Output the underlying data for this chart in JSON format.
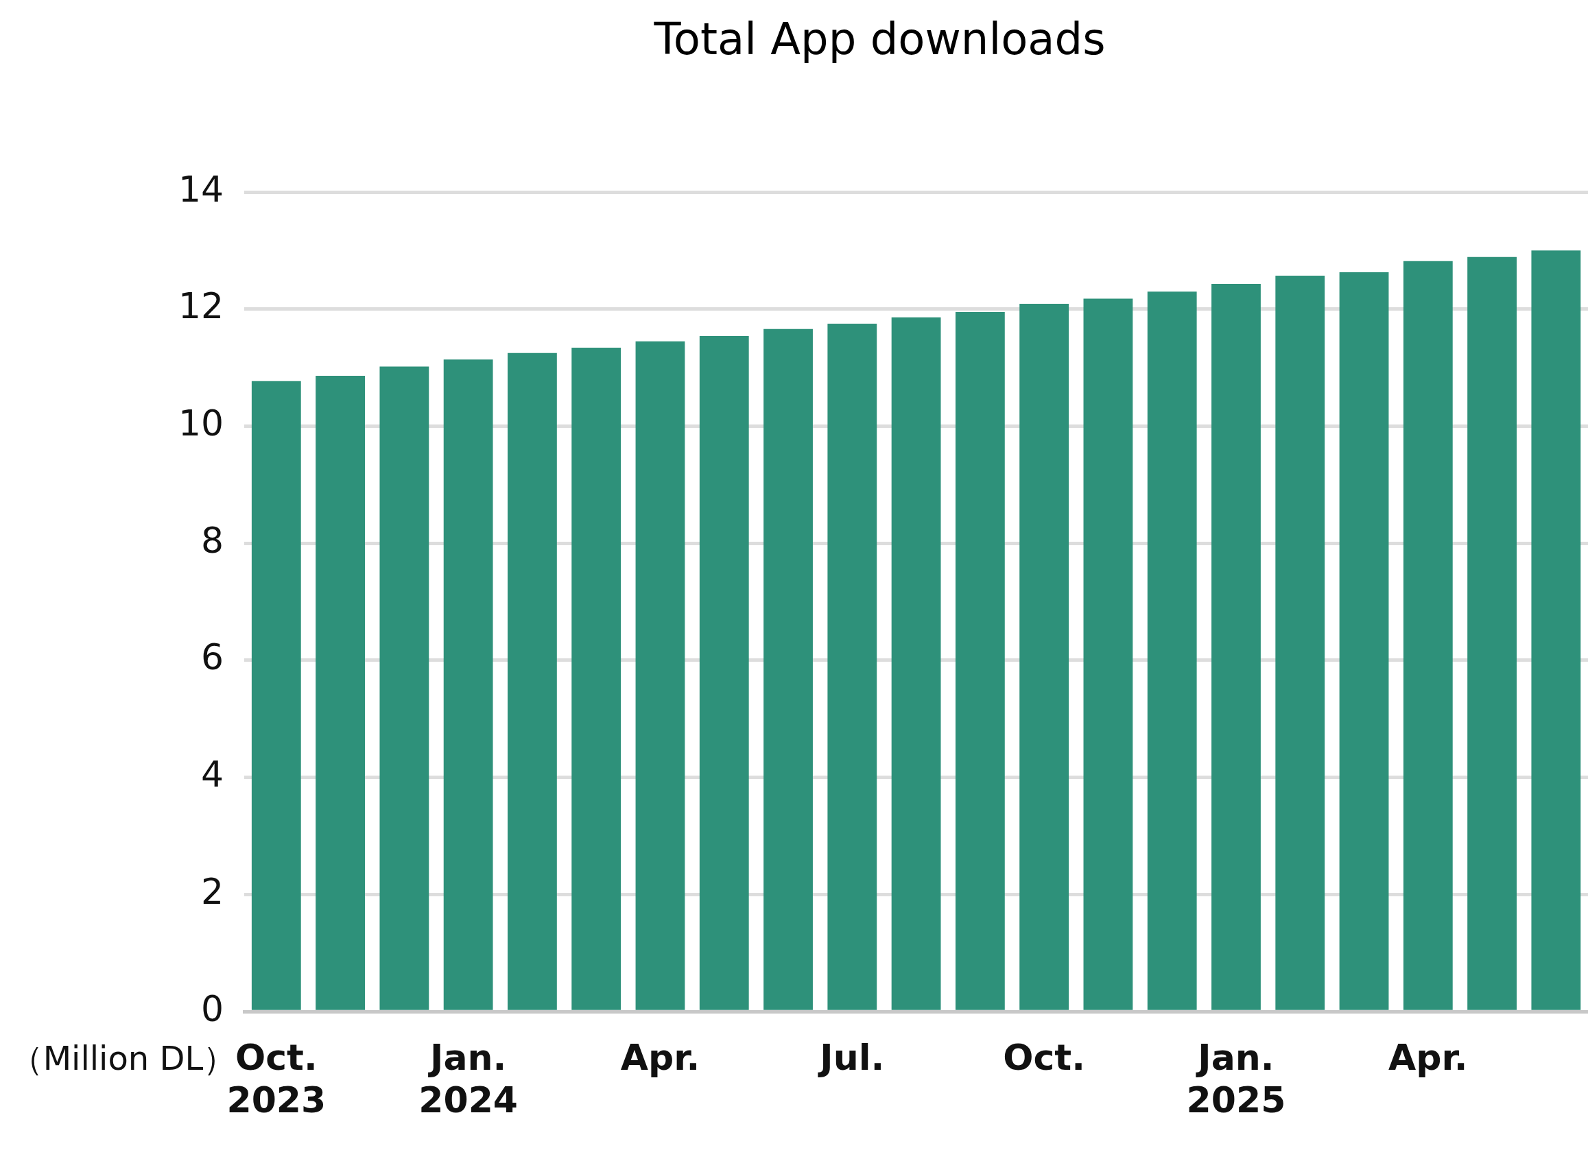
{
  "chart_data": {
    "type": "bar",
    "title": "Total App downloads",
    "ylabel": "（Million DL）",
    "categories": [
      "Oct.\n2023",
      null,
      null,
      "Jan.\n2024",
      null,
      null,
      "Apr.",
      null,
      null,
      "Jul.",
      null,
      null,
      "Oct.",
      null,
      null,
      "Jan.\n2025",
      null,
      null,
      "Apr.",
      null,
      null
    ],
    "values": [
      10.77,
      10.86,
      11.02,
      11.14,
      11.25,
      11.34,
      11.45,
      11.54,
      11.66,
      11.75,
      11.86,
      11.95,
      12.09,
      12.18,
      12.3,
      12.43,
      12.57,
      12.63,
      12.82,
      12.89,
      13.0
    ],
    "color": "#2e917a",
    "ylim": [
      0,
      14
    ],
    "yticks": [
      0,
      2,
      4,
      6,
      8,
      10,
      12,
      14
    ],
    "grid": "y",
    "legend": false
  }
}
